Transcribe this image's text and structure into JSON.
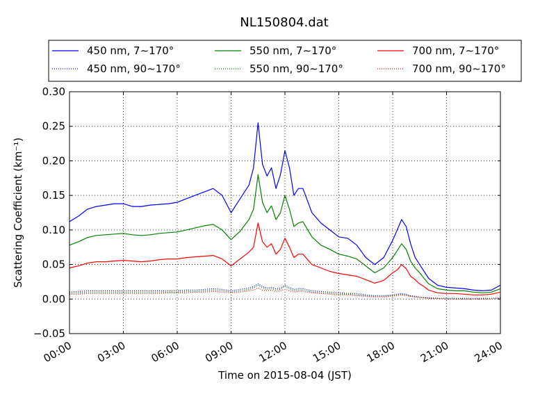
{
  "chart_data": {
    "type": "line",
    "title": "NL150804.dat",
    "xlabel": "Time on 2015-08-04 (JST)",
    "ylabel": "Scattering Coefficient (km⁻¹)",
    "x_unit": "hours",
    "xlim": [
      0,
      24
    ],
    "ylim": [
      -0.05,
      0.3
    ],
    "xticks": [
      0,
      3,
      6,
      9,
      12,
      15,
      18,
      21,
      24
    ],
    "xtick_labels": [
      "00:00",
      "03:00",
      "06:00",
      "09:00",
      "12:00",
      "15:00",
      "18:00",
      "21:00",
      "24:00"
    ],
    "yticks": [
      -0.05,
      0.0,
      0.05,
      0.1,
      0.15,
      0.2,
      0.25,
      0.3
    ],
    "ytick_labels": [
      "−0.05",
      "0.00",
      "0.05",
      "0.10",
      "0.15",
      "0.20",
      "0.25",
      "0.30"
    ],
    "grid": true,
    "legend_position": "top",
    "x": [
      0,
      0.5,
      1,
      1.5,
      2,
      2.5,
      3,
      3.5,
      4,
      4.5,
      5,
      5.5,
      6,
      6.5,
      7,
      7.5,
      8,
      8.5,
      9,
      9.5,
      10,
      10.25,
      10.5,
      10.75,
      11,
      11.25,
      11.5,
      11.75,
      12,
      12.25,
      12.5,
      12.75,
      13,
      13.5,
      14,
      14.5,
      15,
      15.5,
      16,
      16.5,
      17,
      17.5,
      18,
      18.25,
      18.5,
      18.75,
      19,
      19.25,
      19.5,
      19.75,
      20,
      20.5,
      21,
      21.5,
      22,
      22.5,
      23,
      23.5,
      24
    ],
    "series": [
      {
        "name": "450 nm, 7∼170°",
        "color": "#0000ff",
        "style": "solid",
        "values": [
          0.112,
          0.12,
          0.13,
          0.134,
          0.136,
          0.138,
          0.138,
          0.134,
          0.134,
          0.136,
          0.137,
          0.138,
          0.14,
          0.145,
          0.15,
          0.155,
          0.16,
          0.15,
          0.125,
          0.145,
          0.165,
          0.19,
          0.255,
          0.195,
          0.178,
          0.19,
          0.16,
          0.18,
          0.215,
          0.19,
          0.15,
          0.16,
          0.16,
          0.125,
          0.11,
          0.1,
          0.09,
          0.088,
          0.078,
          0.06,
          0.05,
          0.06,
          0.085,
          0.1,
          0.115,
          0.105,
          0.08,
          0.06,
          0.05,
          0.04,
          0.03,
          0.02,
          0.017,
          0.016,
          0.015,
          0.013,
          0.012,
          0.013,
          0.02
        ]
      },
      {
        "name": "550 nm, 7∼170°",
        "color": "#008000",
        "style": "solid",
        "values": [
          0.078,
          0.083,
          0.089,
          0.092,
          0.093,
          0.094,
          0.095,
          0.093,
          0.092,
          0.093,
          0.095,
          0.096,
          0.097,
          0.1,
          0.103,
          0.106,
          0.108,
          0.1,
          0.086,
          0.098,
          0.115,
          0.13,
          0.18,
          0.14,
          0.125,
          0.135,
          0.115,
          0.125,
          0.15,
          0.13,
          0.105,
          0.11,
          0.112,
          0.09,
          0.078,
          0.072,
          0.065,
          0.062,
          0.058,
          0.048,
          0.038,
          0.045,
          0.06,
          0.07,
          0.08,
          0.072,
          0.055,
          0.045,
          0.038,
          0.03,
          0.022,
          0.015,
          0.013,
          0.012,
          0.012,
          0.01,
          0.009,
          0.01,
          0.015
        ]
      },
      {
        "name": "700 nm, 7∼170°",
        "color": "#ff0000",
        "style": "solid",
        "values": [
          0.045,
          0.048,
          0.052,
          0.054,
          0.054,
          0.055,
          0.056,
          0.055,
          0.054,
          0.055,
          0.057,
          0.058,
          0.058,
          0.06,
          0.061,
          0.062,
          0.063,
          0.058,
          0.048,
          0.058,
          0.068,
          0.075,
          0.11,
          0.083,
          0.075,
          0.08,
          0.065,
          0.072,
          0.088,
          0.075,
          0.06,
          0.065,
          0.065,
          0.05,
          0.045,
          0.04,
          0.037,
          0.035,
          0.033,
          0.028,
          0.023,
          0.027,
          0.038,
          0.042,
          0.05,
          0.044,
          0.033,
          0.028,
          0.022,
          0.018,
          0.013,
          0.009,
          0.008,
          0.008,
          0.007,
          0.006,
          0.006,
          0.007,
          0.01
        ]
      },
      {
        "name": "450 nm, 90∼170°",
        "color": "#0000ff",
        "style": "dotted",
        "values": [
          0.01,
          0.011,
          0.012,
          0.012,
          0.012,
          0.012,
          0.012,
          0.012,
          0.012,
          0.012,
          0.012,
          0.012,
          0.012,
          0.013,
          0.013,
          0.014,
          0.015,
          0.014,
          0.012,
          0.014,
          0.016,
          0.018,
          0.022,
          0.018,
          0.016,
          0.017,
          0.015,
          0.016,
          0.02,
          0.017,
          0.014,
          0.015,
          0.015,
          0.012,
          0.011,
          0.01,
          0.009,
          0.008,
          0.008,
          0.006,
          0.005,
          0.005,
          0.006,
          0.007,
          0.008,
          0.007,
          0.005,
          0.004,
          0.003,
          0.002,
          0.002,
          0.001,
          0.001,
          0.001,
          0.001,
          0.001,
          0.001,
          0.001,
          0.002
        ]
      },
      {
        "name": "550 nm, 90∼170°",
        "color": "#008000",
        "style": "dotted",
        "values": [
          0.008,
          0.009,
          0.01,
          0.01,
          0.01,
          0.01,
          0.01,
          0.01,
          0.01,
          0.01,
          0.01,
          0.01,
          0.01,
          0.011,
          0.011,
          0.012,
          0.013,
          0.012,
          0.01,
          0.012,
          0.014,
          0.016,
          0.02,
          0.016,
          0.014,
          0.015,
          0.013,
          0.014,
          0.018,
          0.015,
          0.012,
          0.013,
          0.013,
          0.01,
          0.009,
          0.008,
          0.007,
          0.007,
          0.006,
          0.005,
          0.004,
          0.004,
          0.005,
          0.006,
          0.007,
          0.006,
          0.004,
          0.003,
          0.003,
          0.002,
          0.001,
          0.001,
          0.001,
          0.001,
          0.0,
          0.0,
          0.0,
          0.001,
          0.001
        ]
      },
      {
        "name": "700 nm, 90∼170°",
        "color": "#ff0000",
        "style": "dotted",
        "values": [
          0.007,
          0.007,
          0.008,
          0.008,
          0.008,
          0.008,
          0.008,
          0.008,
          0.008,
          0.008,
          0.008,
          0.009,
          0.009,
          0.009,
          0.01,
          0.01,
          0.011,
          0.01,
          0.009,
          0.01,
          0.012,
          0.013,
          0.016,
          0.013,
          0.012,
          0.013,
          0.011,
          0.012,
          0.014,
          0.012,
          0.01,
          0.011,
          0.011,
          0.009,
          0.008,
          0.007,
          0.006,
          0.006,
          0.005,
          0.004,
          0.003,
          0.003,
          0.004,
          0.005,
          0.006,
          0.005,
          0.004,
          0.003,
          0.002,
          0.002,
          0.001,
          0.001,
          0.0,
          0.0,
          0.0,
          0.0,
          0.0,
          0.0,
          0.001
        ]
      }
    ],
    "legend_order": [
      0,
      3,
      1,
      4,
      2,
      5
    ]
  }
}
